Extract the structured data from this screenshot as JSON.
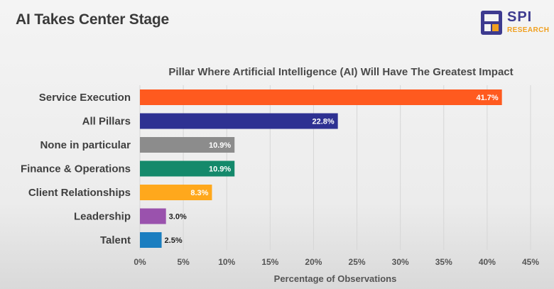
{
  "slide": {
    "title": "AI Takes Center Stage"
  },
  "logo": {
    "name": "SPI",
    "tagline": "RESEARCH",
    "mark_color": "#3d3a8f",
    "accent_color": "#f0a020"
  },
  "chart_data": {
    "type": "bar",
    "orientation": "horizontal",
    "title": "Pillar Where Artificial Intelligence (AI) Will Have The Greatest Impact",
    "xlabel": "Percentage of Observations",
    "ylabel": "",
    "xlim": [
      0,
      45
    ],
    "x_ticks": [
      "0%",
      "5%",
      "10%",
      "15%",
      "20%",
      "25%",
      "30%",
      "35%",
      "40%",
      "45%"
    ],
    "grid": true,
    "legend": "none",
    "categories": [
      "Service Execution",
      "All Pillars",
      "None in particular",
      "Finance & Operations",
      "Client Relationships",
      "Leadership",
      "Talent"
    ],
    "values": [
      41.7,
      22.8,
      10.9,
      10.9,
      8.3,
      3.0,
      2.5
    ],
    "value_labels": [
      "41.7%",
      "22.8%",
      "10.9%",
      "10.9%",
      "8.3%",
      "3.0%",
      "2.5%"
    ],
    "colors": [
      "#ff5a1f",
      "#2e3192",
      "#8c8c8c",
      "#14896b",
      "#ffa81c",
      "#9a52ad",
      "#1b7ec0"
    ]
  }
}
